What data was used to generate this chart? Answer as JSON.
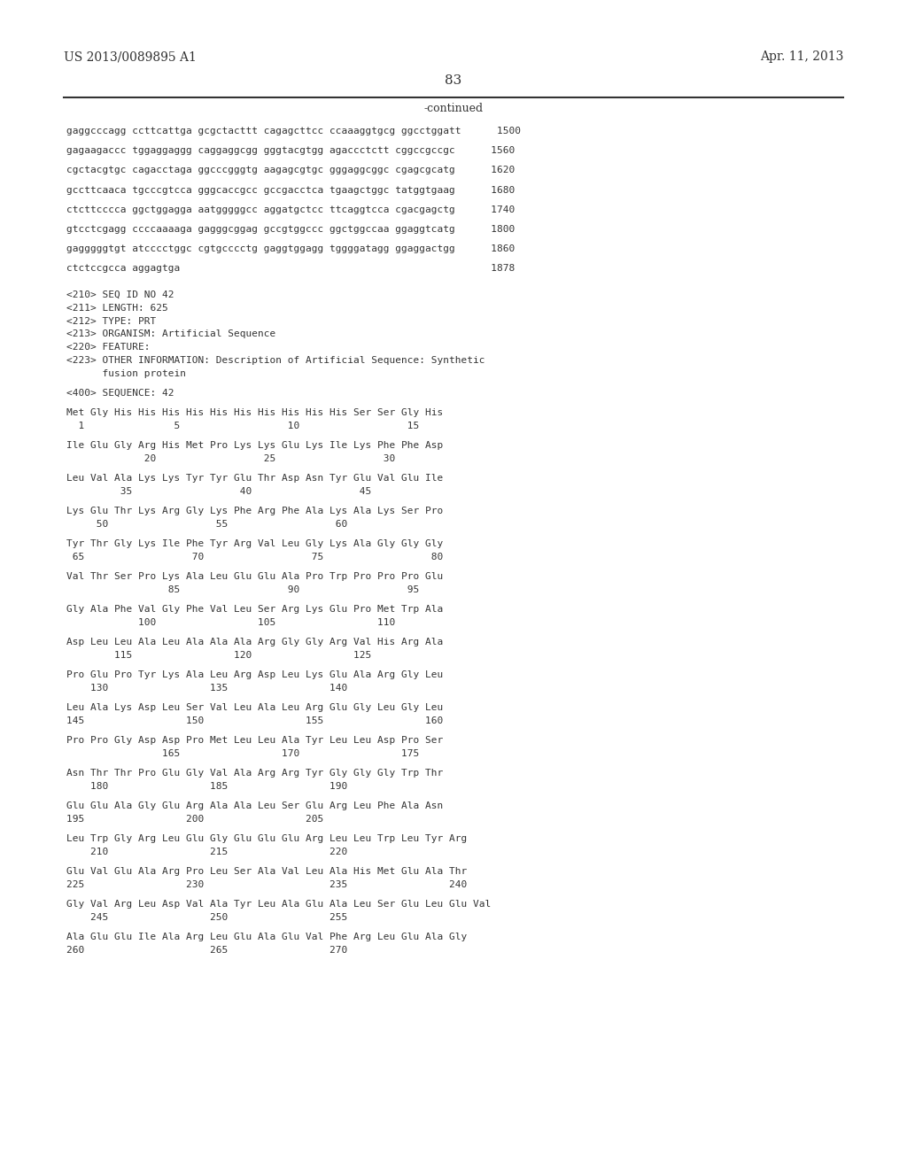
{
  "background_color": "#ffffff",
  "header_left": "US 2013/0089895 A1",
  "header_right": "Apr. 11, 2013",
  "page_number": "83",
  "continued_label": "-continued",
  "content_lines": [
    {
      "text": "gaggcccagg ccttcattga gcgctacttt cagagcttcc ccaaaggtgcg ggcctggatt      1500",
      "type": "seq"
    },
    {
      "text": "",
      "type": "blank"
    },
    {
      "text": "gagaagaccc tggaggaggg caggaggcgg gggtacgtgg agaccctctt cggccgccgc      1560",
      "type": "seq"
    },
    {
      "text": "",
      "type": "blank"
    },
    {
      "text": "cgctacgtgc cagacctaga ggcccgggtg aagagcgtgc gggaggcggc cgagcgcatg      1620",
      "type": "seq"
    },
    {
      "text": "",
      "type": "blank"
    },
    {
      "text": "gccttcaaca tgcccgtcca gggcaccgcc gccgacctca tgaagctggc tatggtgaag      1680",
      "type": "seq"
    },
    {
      "text": "",
      "type": "blank"
    },
    {
      "text": "ctcttcccca ggctggagga aatgggggcc aggatgctcc ttcaggtcca cgacgagctg      1740",
      "type": "seq"
    },
    {
      "text": "",
      "type": "blank"
    },
    {
      "text": "gtcctcgagg ccccaaaaga gagggcggag gccgtggccc ggctggccaa ggaggtcatg      1800",
      "type": "seq"
    },
    {
      "text": "",
      "type": "blank"
    },
    {
      "text": "gagggggtgt atcccctggc cgtgcccctg gaggtggagg tggggatagg ggaggactgg      1860",
      "type": "seq"
    },
    {
      "text": "",
      "type": "blank"
    },
    {
      "text": "ctctccgcca aggagtga                                                    1878",
      "type": "seq"
    },
    {
      "text": "",
      "type": "blank"
    },
    {
      "text": "",
      "type": "blank"
    },
    {
      "text": "<210> SEQ ID NO 42",
      "type": "meta"
    },
    {
      "text": "<211> LENGTH: 625",
      "type": "meta"
    },
    {
      "text": "<212> TYPE: PRT",
      "type": "meta"
    },
    {
      "text": "<213> ORGANISM: Artificial Sequence",
      "type": "meta"
    },
    {
      "text": "<220> FEATURE:",
      "type": "meta"
    },
    {
      "text": "<223> OTHER INFORMATION: Description of Artificial Sequence: Synthetic",
      "type": "meta"
    },
    {
      "text": "      fusion protein",
      "type": "meta"
    },
    {
      "text": "",
      "type": "blank"
    },
    {
      "text": "<400> SEQUENCE: 42",
      "type": "meta"
    },
    {
      "text": "",
      "type": "blank"
    },
    {
      "text": "Met Gly His His His His His His His His His His Ser Ser Gly His",
      "type": "aa"
    },
    {
      "text": "  1               5                  10                  15",
      "type": "num"
    },
    {
      "text": "",
      "type": "blank"
    },
    {
      "text": "Ile Glu Gly Arg His Met Pro Lys Lys Glu Lys Ile Lys Phe Phe Asp",
      "type": "aa"
    },
    {
      "text": "             20                  25                  30",
      "type": "num"
    },
    {
      "text": "",
      "type": "blank"
    },
    {
      "text": "Leu Val Ala Lys Lys Tyr Tyr Glu Thr Asp Asn Tyr Glu Val Glu Ile",
      "type": "aa"
    },
    {
      "text": "         35                  40                  45",
      "type": "num"
    },
    {
      "text": "",
      "type": "blank"
    },
    {
      "text": "Lys Glu Thr Lys Arg Gly Lys Phe Arg Phe Ala Lys Ala Lys Ser Pro",
      "type": "aa"
    },
    {
      "text": "     50                  55                  60",
      "type": "num"
    },
    {
      "text": "",
      "type": "blank"
    },
    {
      "text": "Tyr Thr Gly Lys Ile Phe Tyr Arg Val Leu Gly Lys Ala Gly Gly Gly",
      "type": "aa"
    },
    {
      "text": " 65                  70                  75                  80",
      "type": "num"
    },
    {
      "text": "",
      "type": "blank"
    },
    {
      "text": "Val Thr Ser Pro Lys Ala Leu Glu Glu Ala Pro Trp Pro Pro Pro Glu",
      "type": "aa"
    },
    {
      "text": "                 85                  90                  95",
      "type": "num"
    },
    {
      "text": "",
      "type": "blank"
    },
    {
      "text": "Gly Ala Phe Val Gly Phe Val Leu Ser Arg Lys Glu Pro Met Trp Ala",
      "type": "aa"
    },
    {
      "text": "            100                 105                 110",
      "type": "num"
    },
    {
      "text": "",
      "type": "blank"
    },
    {
      "text": "Asp Leu Leu Ala Leu Ala Ala Ala Arg Gly Gly Arg Val His Arg Ala",
      "type": "aa"
    },
    {
      "text": "        115                 120                 125",
      "type": "num"
    },
    {
      "text": "",
      "type": "blank"
    },
    {
      "text": "Pro Glu Pro Tyr Lys Ala Leu Arg Asp Leu Lys Glu Ala Arg Gly Leu",
      "type": "aa"
    },
    {
      "text": "    130                 135                 140",
      "type": "num"
    },
    {
      "text": "",
      "type": "blank"
    },
    {
      "text": "Leu Ala Lys Asp Leu Ser Val Leu Ala Leu Arg Glu Gly Leu Gly Leu",
      "type": "aa"
    },
    {
      "text": "145                 150                 155                 160",
      "type": "num"
    },
    {
      "text": "",
      "type": "blank"
    },
    {
      "text": "Pro Pro Gly Asp Asp Pro Met Leu Leu Ala Tyr Leu Leu Asp Pro Ser",
      "type": "aa"
    },
    {
      "text": "                165                 170                 175",
      "type": "num"
    },
    {
      "text": "",
      "type": "blank"
    },
    {
      "text": "Asn Thr Thr Pro Glu Gly Val Ala Arg Arg Tyr Gly Gly Gly Trp Thr",
      "type": "aa"
    },
    {
      "text": "    180                 185                 190",
      "type": "num"
    },
    {
      "text": "",
      "type": "blank"
    },
    {
      "text": "Glu Glu Ala Gly Glu Arg Ala Ala Leu Ser Glu Arg Leu Phe Ala Asn",
      "type": "aa"
    },
    {
      "text": "195                 200                 205",
      "type": "num"
    },
    {
      "text": "",
      "type": "blank"
    },
    {
      "text": "Leu Trp Gly Arg Leu Glu Gly Glu Glu Glu Arg Leu Leu Trp Leu Tyr Arg",
      "type": "aa"
    },
    {
      "text": "    210                 215                 220",
      "type": "num"
    },
    {
      "text": "",
      "type": "blank"
    },
    {
      "text": "Glu Val Glu Ala Arg Pro Leu Ser Ala Val Leu Ala His Met Glu Ala Thr",
      "type": "aa"
    },
    {
      "text": "225                 230                     235                 240",
      "type": "num"
    },
    {
      "text": "",
      "type": "blank"
    },
    {
      "text": "Gly Val Arg Leu Asp Val Ala Tyr Leu Ala Glu Ala Leu Ser Glu Leu Glu Val",
      "type": "aa"
    },
    {
      "text": "    245                 250                 255",
      "type": "num"
    },
    {
      "text": "",
      "type": "blank"
    },
    {
      "text": "Ala Glu Glu Ile Ala Arg Leu Glu Ala Glu Val Phe Arg Leu Glu Ala Gly",
      "type": "aa"
    },
    {
      "text": "260                     265                 270",
      "type": "num"
    }
  ]
}
